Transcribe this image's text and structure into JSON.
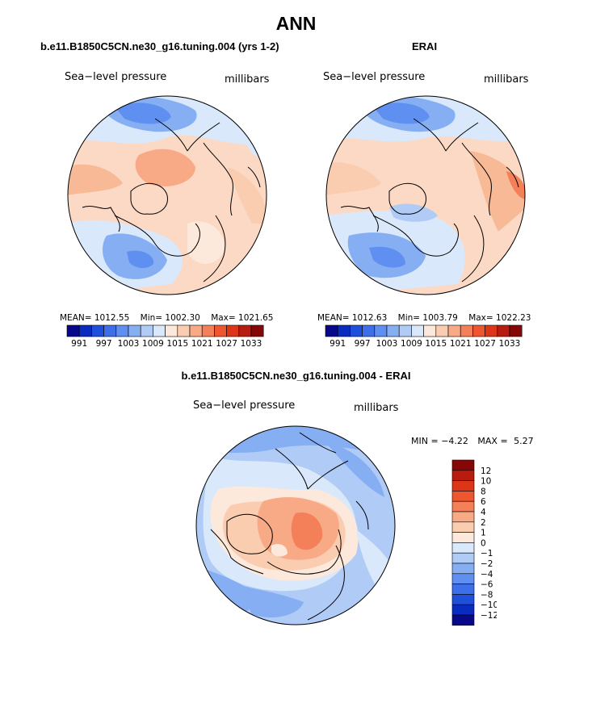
{
  "main_title": "ANN",
  "panels": [
    {
      "title": "b.e11.B1850C5CN.ne30_g16.tuning.004 (yrs 1-2)",
      "variable": "Sea−level pressure",
      "units": "millibars",
      "stats": {
        "mean_label": "MEAN=",
        "mean": "1012.55",
        "min_label": "Min=",
        "min": "1002.30",
        "max_label": "Max=",
        "max": "1021.65"
      }
    },
    {
      "title": "ERAI",
      "variable": "Sea−level pressure",
      "units": "millibars",
      "stats": {
        "mean_label": "MEAN=",
        "mean": "1012.63",
        "min_label": "Min=",
        "min": "1003.79",
        "max_label": "Max=",
        "max": "1022.23"
      }
    }
  ],
  "difference": {
    "title": "b.e11.B1850C5CN.ne30_g16.tuning.004 - ERAI",
    "variable": "Sea−level pressure",
    "units": "millibars",
    "min_label": "MIN =",
    "min": "−4.22",
    "max_label": "MAX =",
    "max": "5.27"
  },
  "colorbars": {
    "absolute": {
      "tick_labels": [
        "991",
        "997",
        "1003",
        "1009",
        "1015",
        "1021",
        "1027",
        "1033"
      ],
      "colors": [
        "#08088a",
        "#0a2bc0",
        "#1f4fdb",
        "#3c6fe8",
        "#5f8ff0",
        "#86aef3",
        "#b0ccf6",
        "#d9e8fa",
        "#fce9dc",
        "#fbcdb0",
        "#f8a985",
        "#f4805a",
        "#ee5630",
        "#dc3518",
        "#b81c0e",
        "#860806"
      ]
    },
    "difference": {
      "tick_labels": [
        "12",
        "10",
        "8",
        "6",
        "4",
        "2",
        "1",
        "0",
        "−1",
        "−2",
        "−4",
        "−6",
        "−8",
        "−10",
        "−12"
      ],
      "colors": [
        "#860806",
        "#b81c0e",
        "#dc3518",
        "#ee5630",
        "#f4805a",
        "#f8a985",
        "#fbcdb0",
        "#fce9dc",
        "#d9e8fa",
        "#b0ccf6",
        "#86aef3",
        "#5f8ff0",
        "#3c6fe8",
        "#1f4fdb",
        "#0a2bc0",
        "#08088a"
      ]
    }
  }
}
